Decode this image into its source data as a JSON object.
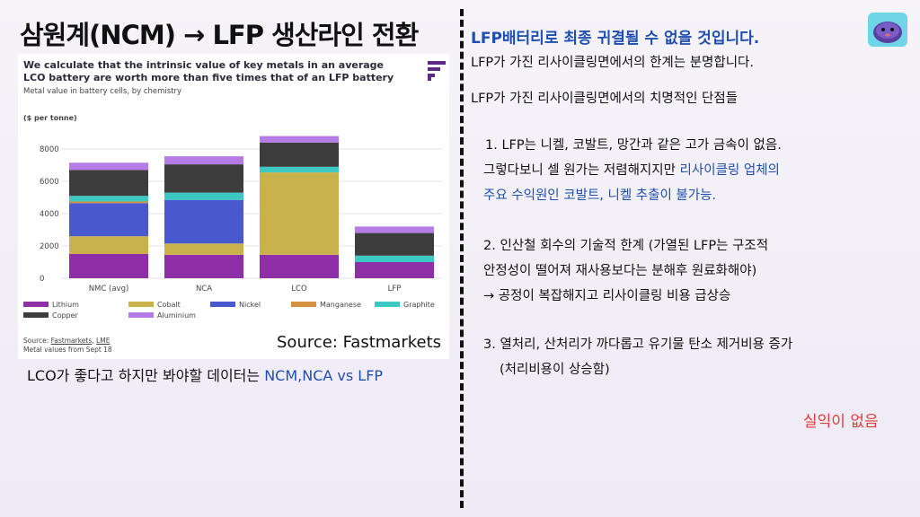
{
  "page": {
    "title": "삼원계(NCM) → LFP 생산라인 전환",
    "caption_prefix": "LCO가 좋다고 하지만 봐야할 데이터는 ",
    "caption_highlight": "NCM,NCA vs LFP",
    "source_big": "Source: Fastmarkets"
  },
  "right": {
    "heading": "LFP배터리로 최종 귀결될 수 없을 것입니다.",
    "line1": "LFP가 가진 리사이클링면에서의 한계는 분명합니다.",
    "line2": "LFP가 가진 리사이클링면에서의 치명적인 단점들",
    "p1_line1": "1. LFP는 니켈, 코발트, 망간과 같은 고가 금속이 없음.",
    "p1_line2a": "그렇다보니 셀 원가는 저렴해지지만 ",
    "p1_line2b": "리사이클링 업체의",
    "p1_line3": "주요 수익원인 코발트, 니켈 추출이 불가능.",
    "p2_line1": "2. 인산철 회수의 기술적 한계 (가열된 LFP는 구조적",
    "p2_line2": "안정성이 떨어져 재사용보다는 분해후 원료화해야)",
    "p2_line3": "→ 공정이 복잡해지고 리사이클링 비용 급상승",
    "p3_line1": "3. 열처리, 산처리가 까다롭고 유기물 탄소 제거비용 증가",
    "p3_line2": "(처리비용이 상승함)",
    "conclusion": "실익이 없음"
  },
  "chart_data": {
    "type": "bar",
    "stacked": true,
    "title": "We calculate that the intrinsic value of key metals in an average LCO battery are worth more than five times that of an LFP battery",
    "subtitle": "Metal value in battery cells, by chemistry",
    "ylabel": "($ per tonne)",
    "xlabel": "",
    "ylim": [
      0,
      9000
    ],
    "yticks": [
      0,
      2000,
      4000,
      6000,
      8000
    ],
    "grid": true,
    "legend_position": "bottom",
    "categories": [
      "NMC (avg)",
      "NCA",
      "LCO",
      "LFP"
    ],
    "series": [
      {
        "name": "Lithium",
        "color": "#8e2fa8",
        "values": [
          1500,
          1450,
          1450,
          1000
        ]
      },
      {
        "name": "Cobalt",
        "color": "#c9b24b",
        "values": [
          1100,
          700,
          5100,
          0
        ]
      },
      {
        "name": "Nickel",
        "color": "#4a58d0",
        "values": [
          2050,
          2700,
          0,
          0
        ]
      },
      {
        "name": "Manganese",
        "color": "#d6913e",
        "values": [
          100,
          0,
          0,
          0
        ]
      },
      {
        "name": "Graphite",
        "color": "#3ec8c4",
        "values": [
          350,
          450,
          350,
          400
        ]
      },
      {
        "name": "Copper",
        "color": "#3d3d3d",
        "values": [
          1600,
          1750,
          1500,
          1400
        ]
      },
      {
        "name": "Aluminium",
        "color": "#b57be6",
        "values": [
          450,
          500,
          400,
          400
        ]
      }
    ],
    "source_text": "Source: ",
    "source_links": [
      "Fastmarkets",
      "LME"
    ],
    "source_note": "Metal values from Sept 18"
  }
}
